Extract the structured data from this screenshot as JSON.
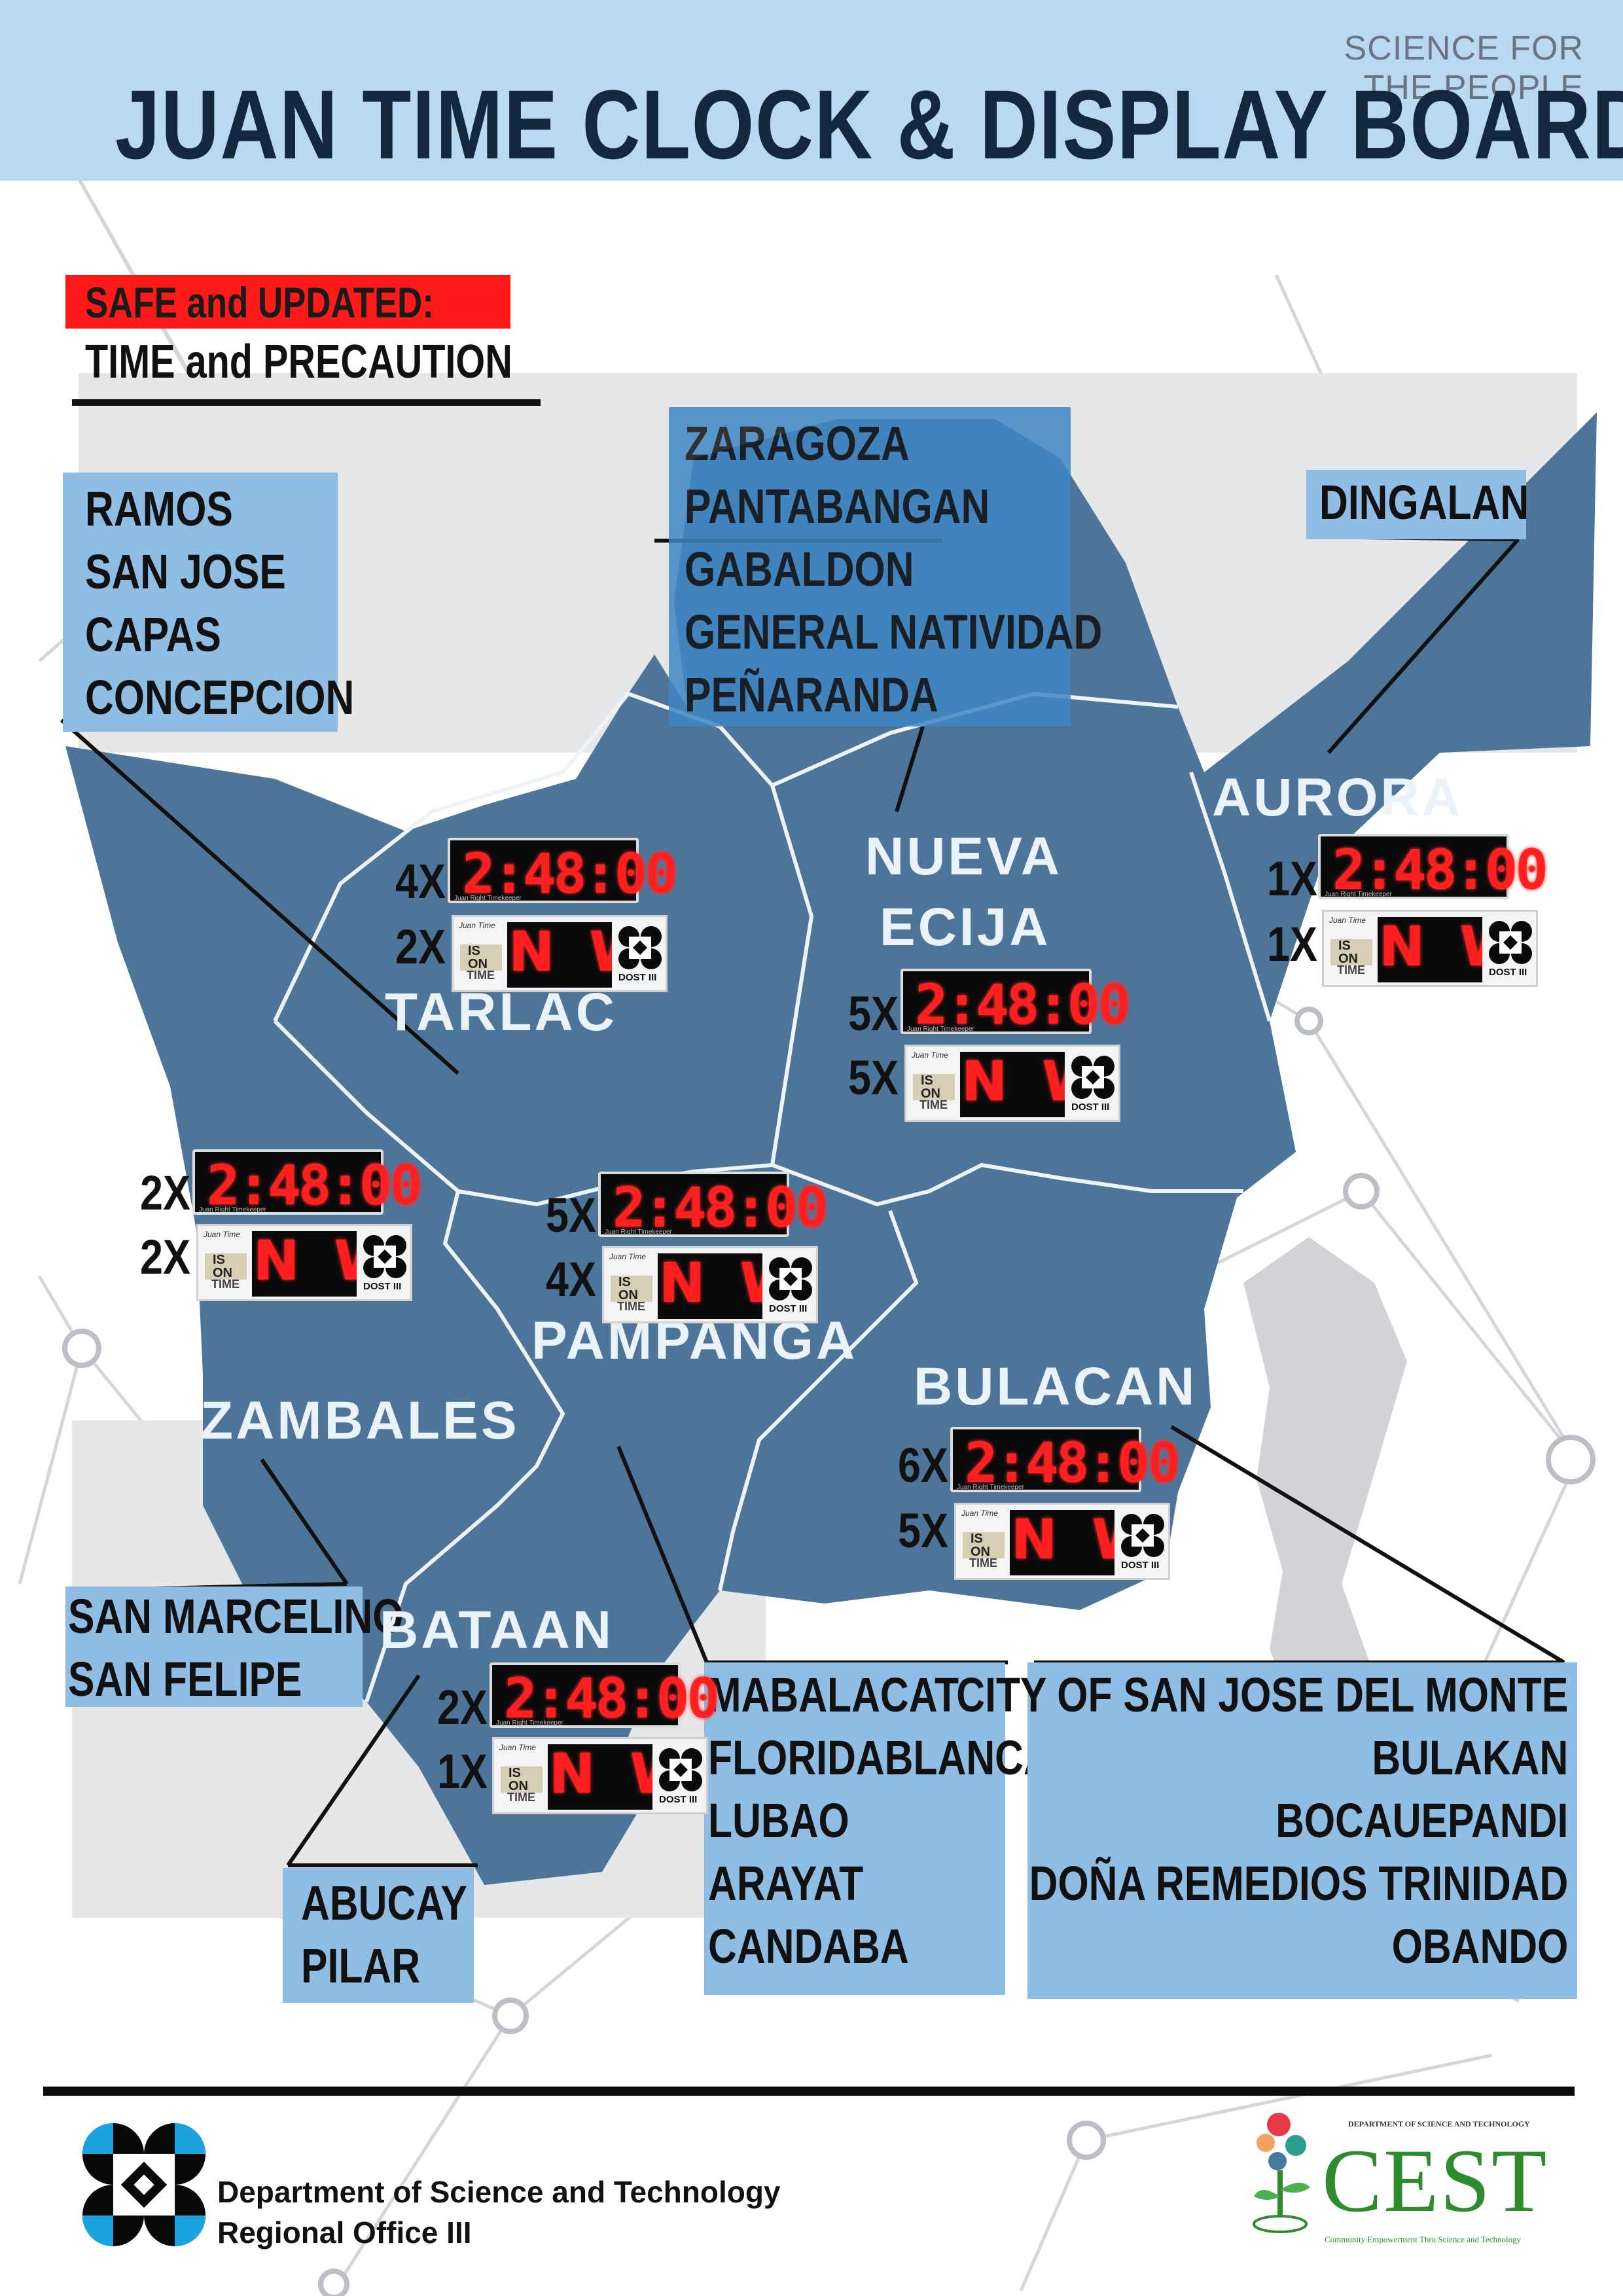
{
  "header": {
    "tagline": "SCIENCE FOR THE PEOPLE",
    "title": "JUAN TIME CLOCK & DISPLAY BOARD"
  },
  "intro": {
    "highlight": "SAFE and UPDATED:",
    "subtitle": "TIME and PRECAUTION"
  },
  "devices": {
    "clock_reading": "2:48:00",
    "clock_caption": "Juan Right Timekeeper",
    "board_ison": "IS ON",
    "board_time": "TIME",
    "board_scroll": "N We",
    "board_brand": "DOST III"
  },
  "provinces": {
    "tarlac": {
      "name": "TARLAC",
      "clocks": "4X",
      "boards": "2X"
    },
    "nueva_ecija": {
      "name_line1": "NUEVA",
      "name_line2": "ECIJA",
      "clocks": "5X",
      "boards": "5X"
    },
    "aurora": {
      "name": "AURORA",
      "clocks": "1X",
      "boards": "1X"
    },
    "zambales": {
      "name": "ZAMBALES",
      "clocks": "2X",
      "boards": "2X"
    },
    "pampanga": {
      "name": "PAMPANGA",
      "clocks": "5X",
      "boards": "4X"
    },
    "bulacan": {
      "name": "BULACAN",
      "clocks": "6X",
      "boards": "5X"
    },
    "bataan": {
      "name": "BATAAN",
      "clocks": "2X",
      "boards": "1X"
    }
  },
  "lists": {
    "tarlac": [
      "RAMOS",
      "SAN JOSE",
      "CAPAS",
      "CONCEPCION"
    ],
    "nueva_ecija": [
      "ZARAGOZA",
      "PANTABANGAN",
      "GABALDON",
      "GENERAL NATIVIDAD",
      "PEÑARANDA"
    ],
    "aurora": [
      "DINGALAN"
    ],
    "zambales": [
      "SAN MARCELINO",
      "SAN FELIPE"
    ],
    "bataan": [
      "ABUCAY",
      "PILAR"
    ],
    "pampanga": [
      "MABALACAT",
      "FLORIDABLANCA",
      "LUBAO",
      "ARAYAT",
      "CANDABA"
    ],
    "bulacan": [
      "CITY OF SAN JOSE DEL MONTE",
      "BULAKAN",
      "BOCAUEPANDI",
      "DOÑA REMEDIOS TRINIDAD",
      "OBANDO"
    ]
  },
  "footer": {
    "dost_name": "Department of Science and Technology",
    "dost_office": "Regional Office III",
    "cest_department": "DEPARTMENT OF SCIENCE AND TECHNOLOGY",
    "cest_word": "CEST",
    "cest_tagline": "Community Empowerment Thru Science and Technology"
  },
  "colors": {
    "header_band": "#b9d9f2",
    "title": "#13273f",
    "map_fill": "#4d7599",
    "list_box": "#8fbde4",
    "highlight": "#ff1a1a",
    "led_red": "#ff2020"
  }
}
